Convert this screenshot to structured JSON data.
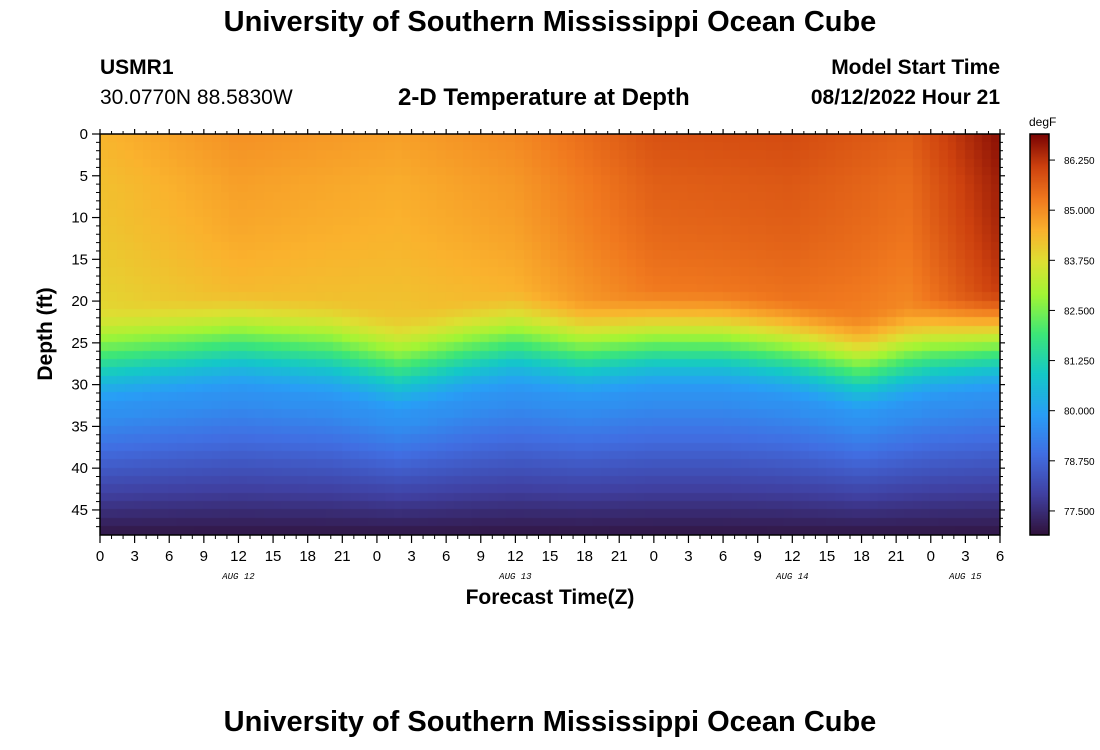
{
  "header": {
    "title": "University of Southern Mississippi Ocean Cube",
    "station_id": "USMR1",
    "coordinates": "30.0770N  88.5830W",
    "subtitle": "2-D Temperature at Depth",
    "model_start_label": "Model Start Time",
    "model_start_value": "08/12/2022 Hour 21"
  },
  "footer": {
    "title": "University of Southern Mississippi Ocean Cube"
  },
  "colors": {
    "background": "#ffffff",
    "axis": "#000000"
  },
  "chart_data": {
    "type": "heatmap",
    "title": "2-D Temperature at Depth",
    "xlabel": "Forecast Time(Z)",
    "ylabel": "Depth (ft)",
    "x_range_hours": [
      0,
      78
    ],
    "y_range_ft": [
      0,
      48
    ],
    "x_tick_labels": [
      "0",
      "3",
      "6",
      "9",
      "12",
      "15",
      "18",
      "21",
      "0",
      "3",
      "6",
      "9",
      "12",
      "15",
      "18",
      "21",
      "0",
      "3",
      "6",
      "9",
      "12",
      "15",
      "18",
      "21",
      "0",
      "3",
      "6"
    ],
    "x_date_labels": [
      {
        "label": "AUG 12",
        "hour": 12
      },
      {
        "label": "AUG 13",
        "hour": 36
      },
      {
        "label": "AUG 14",
        "hour": 60
      },
      {
        "label": "AUG 15",
        "hour": 75
      }
    ],
    "y_ticks": [
      0,
      5,
      10,
      15,
      20,
      25,
      30,
      35,
      40,
      45
    ],
    "y_tick_labels": [
      "0",
      "5",
      "10",
      "15",
      "20",
      "25",
      "30",
      "35",
      "40",
      "45"
    ],
    "colorbar": {
      "unit": "degF",
      "min": 76.9,
      "max": 86.9,
      "ticks": [
        86.25,
        85.0,
        83.75,
        82.5,
        81.25,
        80.0,
        78.75,
        77.5
      ],
      "tick_labels": [
        "86.250",
        "85.000",
        "83.750",
        "82.500",
        "81.250",
        "80.000",
        "78.750",
        "77.500"
      ]
    },
    "grid": false,
    "thermocline_depth_ft_by_hour": [
      {
        "hour": 0,
        "depth": 26
      },
      {
        "hour": 6,
        "depth": 25
      },
      {
        "hour": 12,
        "depth": 24
      },
      {
        "hour": 20,
        "depth": 25
      },
      {
        "hour": 26,
        "depth": 27
      },
      {
        "hour": 32,
        "depth": 25
      },
      {
        "hour": 36,
        "depth": 24
      },
      {
        "hour": 42,
        "depth": 25
      },
      {
        "hour": 48,
        "depth": 24
      },
      {
        "hour": 54,
        "depth": 24
      },
      {
        "hour": 60,
        "depth": 25
      },
      {
        "hour": 66,
        "depth": 27
      },
      {
        "hour": 72,
        "depth": 25
      },
      {
        "hour": 78,
        "depth": 24
      }
    ],
    "surface_temp_degF_by_hour": [
      {
        "hour": 0,
        "temp": 84.3
      },
      {
        "hour": 12,
        "temp": 84.8
      },
      {
        "hour": 26,
        "temp": 84.6
      },
      {
        "hour": 36,
        "temp": 84.9
      },
      {
        "hour": 48,
        "temp": 85.7
      },
      {
        "hour": 60,
        "temp": 85.8
      },
      {
        "hour": 70,
        "temp": 85.5
      },
      {
        "hour": 78,
        "temp": 86.6
      }
    ]
  }
}
